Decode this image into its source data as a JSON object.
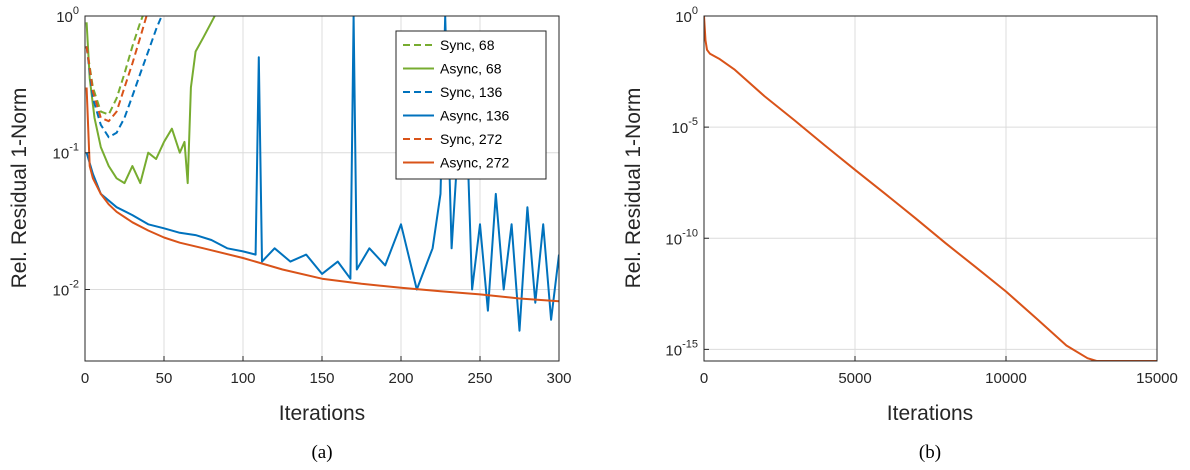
{
  "chart_data": [
    {
      "type": "line",
      "caption": "(a)",
      "xlabel": "Iterations",
      "ylabel": "Rel. Residual 1-Norm",
      "xlim": [
        0,
        300
      ],
      "ylim": [
        0.003,
        1
      ],
      "yscale": "log",
      "grid": true,
      "legend_position": "top-right",
      "x_ticks": [
        0,
        50,
        100,
        150,
        200,
        250,
        300
      ],
      "y_ticks": [
        {
          "value": 0.01,
          "base": "10",
          "exp": "-2"
        },
        {
          "value": 0.1,
          "base": "10",
          "exp": "-1"
        },
        {
          "value": 1,
          "base": "10",
          "exp": "0"
        }
      ],
      "series": [
        {
          "name": "Sync, 68",
          "color": "#77AC30",
          "dash": true,
          "x": [
            1,
            5,
            10,
            15,
            20,
            25,
            30,
            35,
            38
          ],
          "y": [
            0.6,
            0.3,
            0.2,
            0.19,
            0.25,
            0.38,
            0.6,
            0.9,
            1.1
          ]
        },
        {
          "name": "Async, 68",
          "color": "#77AC30",
          "dash": false,
          "x": [
            1,
            3,
            6,
            10,
            15,
            20,
            25,
            30,
            35,
            40,
            45,
            50,
            55,
            60,
            63,
            65,
            67,
            70,
            75,
            80,
            84
          ],
          "y": [
            0.9,
            0.35,
            0.18,
            0.11,
            0.08,
            0.065,
            0.06,
            0.08,
            0.06,
            0.1,
            0.09,
            0.12,
            0.15,
            0.1,
            0.12,
            0.06,
            0.3,
            0.55,
            0.7,
            0.9,
            1.1
          ]
        },
        {
          "name": "Sync, 136",
          "color": "#0072BD",
          "dash": true,
          "x": [
            1,
            5,
            10,
            15,
            20,
            25,
            30,
            35,
            40,
            45,
            50
          ],
          "y": [
            0.6,
            0.25,
            0.16,
            0.13,
            0.14,
            0.18,
            0.26,
            0.38,
            0.55,
            0.8,
            1.1
          ]
        },
        {
          "name": "Async, 136",
          "color": "#0072BD",
          "dash": false,
          "x": [
            1,
            5,
            10,
            20,
            30,
            40,
            50,
            60,
            70,
            80,
            90,
            100,
            108,
            110,
            112,
            120,
            130,
            140,
            150,
            160,
            168,
            170,
            172,
            180,
            190,
            200,
            210,
            220,
            225,
            228,
            232,
            240,
            245,
            250,
            255,
            260,
            265,
            270,
            275,
            280,
            285,
            290,
            295,
            300
          ],
          "y": [
            0.1,
            0.07,
            0.05,
            0.04,
            0.035,
            0.03,
            0.028,
            0.026,
            0.025,
            0.023,
            0.02,
            0.019,
            0.018,
            0.5,
            0.016,
            0.02,
            0.016,
            0.018,
            0.013,
            0.016,
            0.012,
            1.0,
            0.014,
            0.02,
            0.015,
            0.03,
            0.01,
            0.02,
            0.05,
            1.0,
            0.02,
            0.6,
            0.01,
            0.03,
            0.007,
            0.05,
            0.01,
            0.03,
            0.005,
            0.04,
            0.008,
            0.03,
            0.006,
            0.018
          ]
        },
        {
          "name": "Sync, 272",
          "color": "#D95319",
          "dash": true,
          "x": [
            1,
            5,
            10,
            15,
            20,
            25,
            30,
            35,
            40
          ],
          "y": [
            0.6,
            0.28,
            0.18,
            0.17,
            0.2,
            0.3,
            0.45,
            0.7,
            1.1
          ]
        },
        {
          "name": "Async, 272",
          "color": "#D95319",
          "dash": false,
          "x": [
            1,
            3,
            5,
            10,
            15,
            20,
            30,
            40,
            50,
            60,
            75,
            100,
            125,
            150,
            175,
            200,
            225,
            250,
            275,
            300
          ],
          "y": [
            0.3,
            0.08,
            0.065,
            0.05,
            0.042,
            0.037,
            0.031,
            0.027,
            0.024,
            0.022,
            0.02,
            0.017,
            0.014,
            0.012,
            0.011,
            0.0103,
            0.0097,
            0.0092,
            0.0086,
            0.0082
          ]
        }
      ]
    },
    {
      "type": "line",
      "caption": "(b)",
      "xlabel": "Iterations",
      "ylabel": "Rel. Residual 1-Norm",
      "xlim": [
        0,
        15000
      ],
      "ylim": [
        3e-16,
        1
      ],
      "yscale": "log",
      "grid": true,
      "x_ticks": [
        0,
        5000,
        10000,
        15000
      ],
      "y_ticks": [
        {
          "value": 1e-15,
          "base": "10",
          "exp": "-15"
        },
        {
          "value": 1e-10,
          "base": "10",
          "exp": "-10"
        },
        {
          "value": 1e-05,
          "base": "10",
          "exp": "-5"
        },
        {
          "value": 1,
          "base": "10",
          "exp": "0"
        }
      ],
      "series": [
        {
          "color": "#D95319",
          "dash": false,
          "x": [
            0,
            50,
            100,
            200,
            500,
            1000,
            2000,
            3000,
            4000,
            5000,
            6000,
            7000,
            8000,
            9000,
            10000,
            11000,
            12000,
            12700,
            13000,
            13500,
            14000,
            15000
          ],
          "y": [
            1,
            0.08,
            0.03,
            0.02,
            0.012,
            0.004,
            0.00025,
            2e-05,
            1.5e-06,
            1.2e-07,
            1e-08,
            8e-10,
            6e-11,
            5e-12,
            4e-13,
            2.5e-14,
            1.5e-15,
            4e-16,
            3e-16,
            3e-16,
            3e-16,
            3e-16
          ]
        }
      ]
    }
  ]
}
